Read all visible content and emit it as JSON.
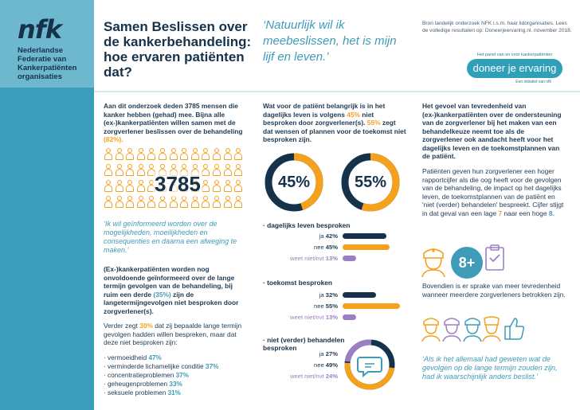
{
  "sidebar": {
    "logo": "nfk",
    "org_name": "Nederlandse Federatie van Kankerpatiënten organisaties"
  },
  "header": {
    "title": "Samen Beslissen over de kankerbehandeling: hoe ervaren patiënten dat?",
    "quote": "‘Natuurlijk wil ik meebeslissen, het is mijn lijf en leven.’",
    "source": "Bron landelijk onderzoek NFK i.s.m. haar lidorganisaties. Lees de volledige resultaten op: Doneerjeervaring.nl. november 2018.",
    "badge_top": "Het panel van en voor kankerpatiënten",
    "badge_name": "doneer je ervaring",
    "badge_tag": "Een initiatief van nfk"
  },
  "col1": {
    "intro_a": "Aan dit onderzoek deden 3785 mensen die kanker hebben (gehad) mee. Bijna alle (ex-)kankerpatiënten willen samen met de zorgverlener beslissen over de behandeling",
    "intro_pct": "(82%).",
    "big_number": "3785",
    "quote": "‘Ik wil geïnformeerd worden over de mogelijkheden, moeilijkheden en consequenties en daarna een afweging te maken.’",
    "para2_a": "(Ex-)kankerpatiënten worden nog onvoldoende geïnformeerd over de lange termijn gevolgen van de behandeling, bij ruim een derde",
    "para2_pct": "(35%)",
    "para2_b": "zijn de langetermijngevolgen niet besproken door zorgverlener(s).",
    "para3_a": "Verder zegt",
    "para3_pct": "30%",
    "para3_b": "dat zij bepaalde lange termijn gevolgen hadden willen bespreken, maar dat deze niet besproken zijn:",
    "list": [
      {
        "label": "· vermoeidheid",
        "value": "47%"
      },
      {
        "label": "· verminderde lichamelijke conditie",
        "value": "37%"
      },
      {
        "label": "· concentratieproblemen",
        "value": "37%"
      },
      {
        "label": "· geheugenproblemen",
        "value": "33%"
      },
      {
        "label": "· seksuele problemen",
        "value": "31%"
      }
    ]
  },
  "col2": {
    "intro_a": "Wat voor de patiënt belangrijk is in het dagelijks leven is volgens",
    "intro_pct1": "45%",
    "intro_b": "niet besproken door zorgverlener(s).",
    "intro_pct2": "55%",
    "intro_c": "zegt dat wensen of plannen voor de toekomst niet besproken zijn."
  },
  "chart_data": [
    {
      "type": "pie",
      "title": "dagelijks leven niet besproken",
      "values": [
        45,
        55
      ],
      "label": "45%"
    },
    {
      "type": "pie",
      "title": "toekomst niet besproken",
      "values": [
        55,
        45
      ],
      "label": "55%"
    },
    {
      "type": "bar",
      "title": "dagelijks leven besproken",
      "categories": [
        "ja",
        "nee",
        "weet niet/nvt"
      ],
      "values": [
        42,
        45,
        13
      ]
    },
    {
      "type": "bar",
      "title": "toekomst besproken",
      "categories": [
        "ja",
        "nee",
        "weet niet/nvt"
      ],
      "values": [
        32,
        55,
        13
      ]
    },
    {
      "type": "bar",
      "title": "niet (verder) behandelen besproken",
      "categories": [
        "ja",
        "nee",
        "weet niet/nvt"
      ],
      "values": [
        27,
        49,
        24
      ]
    }
  ],
  "groups": [
    {
      "title": "· dagelijks leven besproken",
      "rows": [
        {
          "label": "ja",
          "value": "42%"
        },
        {
          "label": "nee",
          "value": "45%"
        },
        {
          "label": "weet niet/nvt",
          "value": "13%"
        }
      ]
    },
    {
      "title": "· toekomst besproken",
      "rows": [
        {
          "label": "ja",
          "value": "32%"
        },
        {
          "label": "nee",
          "value": "55%"
        },
        {
          "label": "weet niet/nvt",
          "value": "13%"
        }
      ]
    },
    {
      "title": "· niet (verder) behandelen besproken",
      "rows": [
        {
          "label": "ja",
          "value": "27%"
        },
        {
          "label": "nee",
          "value": "49%"
        },
        {
          "label": "weet niet/nvt",
          "value": "24%"
        }
      ]
    }
  ],
  "col3": {
    "intro": "Het gevoel van tevredenheid van (ex-)kankerpatiënten over de ondersteuning van de zorgverlener bij het maken van een behandelkeuze neemt toe als de zorgverlener ook aandacht heeft voor het dagelijks leven en de toekomstplannen van de patiënt.",
    "para_a": "Patiënten geven hun zorgverlener een hoger rapportcijfer als die oog heeft voor de gevolgen van de behandeling, de impact op het dagelijks leven, de toekomstplannen van de patiënt en 'niet (verder) behandelen' bespreekt. Cijfer stijgt in dat geval van een lage",
    "grade_low": "7",
    "para_b": "naar een hoge",
    "grade_high": "8.",
    "medal": "8+",
    "para2": "Bovendien is er sprake van meer tevredenheid wanneer meerdere zorgverleners betrokken zijn.",
    "quote": "‘Als ik het allemaal had geweten wat de gevolgen op de lange termijn zouden zijn, had ik waarschijnlijk anders beslist.’"
  },
  "colors": {
    "navy": "#15324a",
    "teal": "#3f9bb7",
    "orange": "#f4a11e",
    "purple": "#9b7fc4"
  }
}
